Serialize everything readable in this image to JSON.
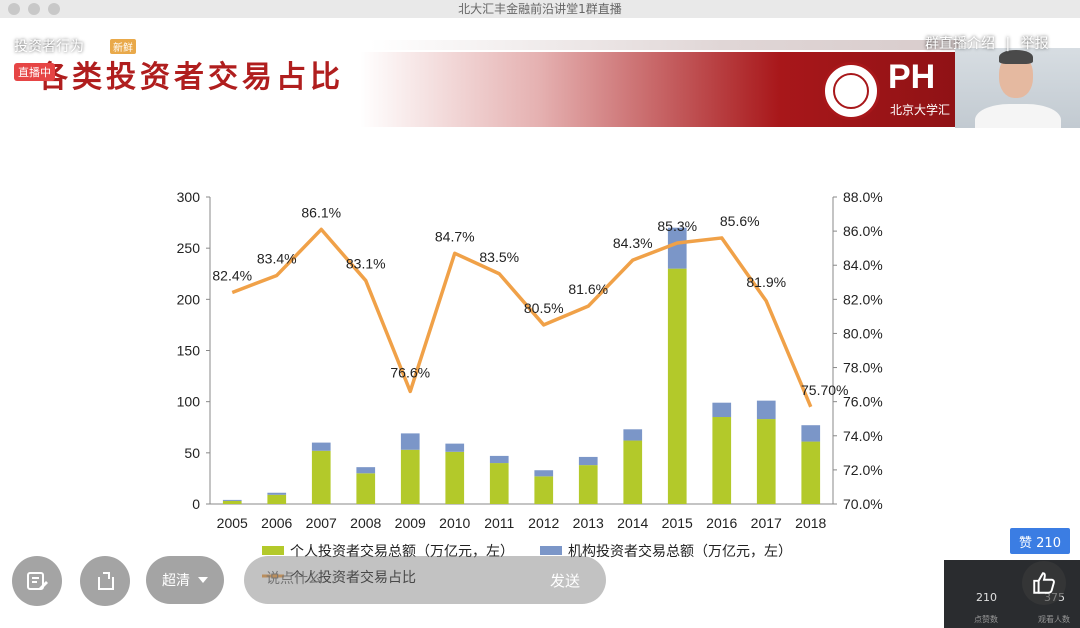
{
  "window": {
    "title": "北大汇丰金融前沿讲堂1群直播"
  },
  "overlay": {
    "topic": "投资者行为",
    "tag": "新鲜",
    "live_badge": "直播中",
    "group_intro": "群直播介绍",
    "separator": "|",
    "report": "举报"
  },
  "slide": {
    "title": "各类投资者交易占比",
    "logo_text": "PH",
    "logo_sub": "北京大学汇"
  },
  "chart_data": {
    "type": "bar",
    "categories": [
      "2005",
      "2006",
      "2007",
      "2008",
      "2009",
      "2010",
      "2011",
      "2012",
      "2013",
      "2014",
      "2015",
      "2016",
      "2017",
      "2018"
    ],
    "series": [
      {
        "name": "个人投资者交易总额（万亿元，左）",
        "type": "bar",
        "stack": "total",
        "color": "#b3c92a",
        "values": [
          3,
          9,
          52,
          30,
          53,
          51,
          40,
          27,
          38,
          62,
          230,
          85,
          83,
          61
        ]
      },
      {
        "name": "机构投资者交易总额（万亿元，左）",
        "type": "bar",
        "stack": "total",
        "color": "#7b96c8",
        "values": [
          1,
          2,
          8,
          6,
          16,
          8,
          7,
          6,
          8,
          11,
          40,
          14,
          18,
          16
        ]
      },
      {
        "name": "个人投资者交易占比",
        "type": "line",
        "axis": "right",
        "color": "#f0a148",
        "values": [
          82.4,
          83.4,
          86.1,
          83.1,
          76.6,
          84.7,
          83.5,
          80.5,
          81.6,
          84.3,
          85.3,
          85.6,
          81.9,
          75.7
        ],
        "labels": [
          "82.4%",
          "83.4%",
          "86.1%",
          "83.1%",
          "76.6%",
          "84.7%",
          "83.5%",
          "80.5%",
          "81.6%",
          "84.3%",
          "85.3%",
          "85.6%",
          "81.9%",
          "75.70%"
        ]
      }
    ],
    "left_axis": {
      "min": 0,
      "max": 300,
      "ticks": [
        "0",
        "50",
        "100",
        "150",
        "200",
        "250",
        "300"
      ]
    },
    "right_axis": {
      "min": 70,
      "max": 88,
      "ticks": [
        "70.0%",
        "72.0%",
        "74.0%",
        "76.0%",
        "78.0%",
        "80.0%",
        "82.0%",
        "84.0%",
        "86.0%",
        "88.0%"
      ]
    },
    "legend_placement": "bottom"
  },
  "controls": {
    "quality": "超清",
    "chat_placeholder": "说点什么...",
    "send": "发送",
    "like": "赞 210",
    "stats": [
      {
        "value": "210",
        "label": "点赞数"
      },
      {
        "value": "375",
        "label": "观看人数"
      }
    ]
  },
  "icons": [
    "edit-icon",
    "share-icon",
    "chevron-down-icon",
    "thumb-up-icon"
  ]
}
